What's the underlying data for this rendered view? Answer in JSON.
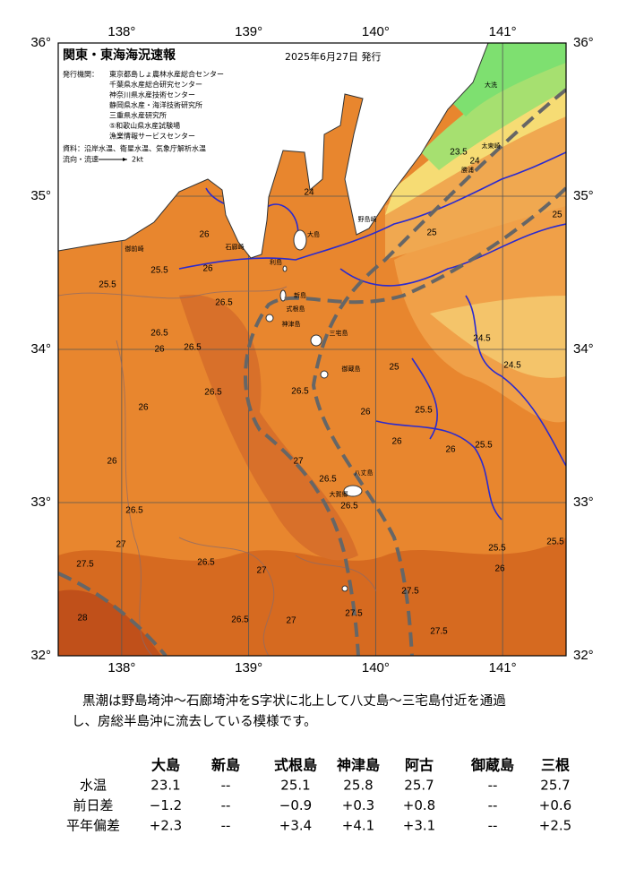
{
  "map": {
    "title": "関東・東海海況速報",
    "date": "2025年6月27日 発行",
    "issuer_label": "発行機関：",
    "issuers": [
      "東京都島しょ農林水産総合センター",
      "千葉県水産総合研究センター",
      "神奈川県水産技術センター",
      "静岡県水産・海洋技術研究所",
      "三重県水産研究所",
      "⑤和歌山県水産試験場",
      "漁業情報サービスセンター"
    ],
    "source": "資料：沿岸水温、衛星水温、気象庁解析水温",
    "current_label": "流向・流速",
    "current_scale": "2kt",
    "lonlim": [
      137.5,
      141.5
    ],
    "latlim": [
      32,
      36
    ],
    "lon_ticks": [
      {
        "value": 138,
        "label": "138°"
      },
      {
        "value": 139,
        "label": "139°"
      },
      {
        "value": 140,
        "label": "140°"
      },
      {
        "value": 141,
        "label": "141°"
      }
    ],
    "lat_ticks": [
      {
        "value": 32,
        "label": "32°"
      },
      {
        "value": 33,
        "label": "33°"
      },
      {
        "value": 34,
        "label": "34°"
      },
      {
        "value": 35,
        "label": "35°"
      },
      {
        "value": 36,
        "label": "36°"
      }
    ],
    "place_names": [
      "大洗",
      "太東崎",
      "勝浦",
      "野島崎",
      "石廊崎",
      "御前崎",
      "大島",
      "利島",
      "新島",
      "式根島",
      "神津島",
      "三宅島",
      "御蔵島",
      "八丈島",
      "大賀郷"
    ],
    "contour_labels": [
      "25.5",
      "25.5",
      "26",
      "26",
      "26.5",
      "26.5",
      "26.5",
      "26",
      "26.5",
      "26",
      "26.5",
      "27",
      "26.5",
      "26.5",
      "26",
      "26",
      "25.5",
      "25",
      "24.5",
      "24.5",
      "25",
      "24",
      "23.5",
      "25",
      "26",
      "25.5",
      "26",
      "26.5",
      "27",
      "27.5",
      "28",
      "26.5",
      "27",
      "27",
      "26.5",
      "27.5",
      "27.5",
      "27.5",
      "26",
      "25.5",
      "25.5",
      "24"
    ]
  },
  "note": {
    "lines": [
      "黒潮は野島埼沖～石廊埼沖をS字状に北上して八丈島～三宅島付近を通過",
      "し、房総半島沖に流去している模様です。"
    ]
  },
  "table": {
    "columns": [
      "大島",
      "新島",
      "式根島",
      "神津島",
      "阿古",
      "御蔵島",
      "三根"
    ],
    "rows": [
      {
        "label": "水温",
        "cells": [
          "23.1",
          "--",
          "25.1",
          "25.8",
          "25.7",
          "--",
          "25.7"
        ]
      },
      {
        "label": "前日差",
        "cells": [
          "−1.2",
          "--",
          "−0.9",
          "+0.3",
          "+0.8",
          "--",
          "+0.6"
        ]
      },
      {
        "label": "平年偏差",
        "cells": [
          "+2.3",
          "--",
          "+3.4",
          "+4.1",
          "+3.1",
          "--",
          "+2.5"
        ]
      }
    ]
  }
}
